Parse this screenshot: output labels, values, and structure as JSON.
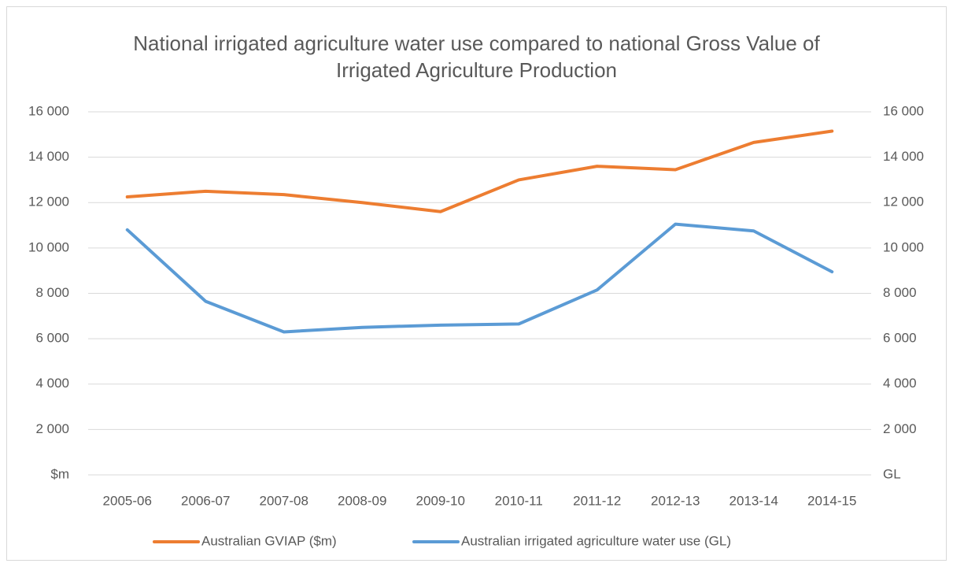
{
  "chart_data": {
    "type": "line",
    "title": "National irrigated agriculture water use compared to national Gross Value of Irrigated Agriculture Production",
    "categories": [
      "2005-06",
      "2006-07",
      "2007-08",
      "2008-09",
      "2009-10",
      "2010-11",
      "2011-12",
      "2012-13",
      "2013-14",
      "2014-15"
    ],
    "series": [
      {
        "name": "Australian GVIAP ($m)",
        "color": "#ed7d31",
        "axis": "y",
        "values": [
          12250,
          12500,
          12350,
          12000,
          11600,
          13000,
          13600,
          13450,
          14650,
          15150
        ]
      },
      {
        "name": "Australian irrigated agriculture water use (GL)",
        "color": "#5b9bd5",
        "axis": "y2",
        "values": [
          10800,
          7650,
          6300,
          6500,
          6600,
          6650,
          8150,
          11050,
          10750,
          8950
        ]
      }
    ],
    "ylim": [
      0,
      16000
    ],
    "yticks": [
      {
        "value": 0,
        "label": "$m"
      },
      {
        "value": 2000,
        "label": "2 000"
      },
      {
        "value": 4000,
        "label": "4 000"
      },
      {
        "value": 6000,
        "label": "6 000"
      },
      {
        "value": 8000,
        "label": "8 000"
      },
      {
        "value": 10000,
        "label": "10 000"
      },
      {
        "value": 12000,
        "label": "12 000"
      },
      {
        "value": 14000,
        "label": "14 000"
      },
      {
        "value": 16000,
        "label": "16 000"
      }
    ],
    "y2lim": [
      0,
      16000
    ],
    "y2ticks": [
      {
        "value": 0,
        "label": "GL"
      },
      {
        "value": 2000,
        "label": "2 000"
      },
      {
        "value": 4000,
        "label": "4 000"
      },
      {
        "value": 6000,
        "label": "6 000"
      },
      {
        "value": 8000,
        "label": "8 000"
      },
      {
        "value": 10000,
        "label": "10 000"
      },
      {
        "value": 12000,
        "label": "12 000"
      },
      {
        "value": 14000,
        "label": "14 000"
      },
      {
        "value": 16000,
        "label": "16 000"
      }
    ],
    "grid": true,
    "legend": "bottom"
  }
}
